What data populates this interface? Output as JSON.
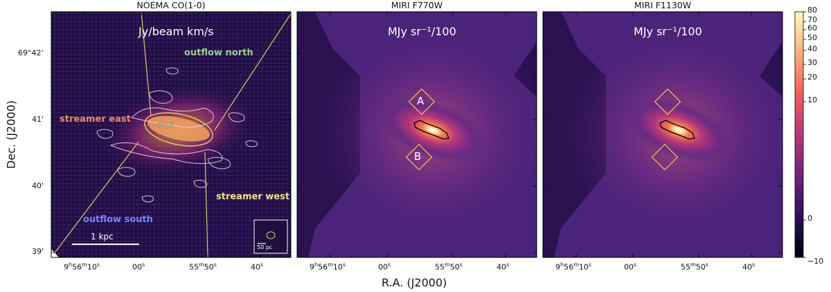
{
  "panels": [
    {
      "title": "NOEMA CO(1-0)",
      "unit": "Jy/beam km/s"
    },
    {
      "title": "MIRI F770W",
      "unit": "MJy sr⁻¹/100"
    },
    {
      "title": "MIRI F1130W",
      "unit": "MJy sr⁻¹/100"
    }
  ],
  "annotations": {
    "outflow_north": "outflow north",
    "streamer_east": "streamer east",
    "disk": "disk",
    "streamer_west": "streamer west",
    "outflow_south": "outflow south",
    "scalebar": "1 kpc",
    "inset_scalebar": "50 pc",
    "region_a": "A",
    "region_b": "B"
  },
  "axes": {
    "xlabel": "R.A. (J2000)",
    "ylabel": "Dec. (J2000)",
    "yticks": [
      "69°42'",
      "41'",
      "40'",
      "39'"
    ],
    "xticks": [
      {
        "main": "9h56m10s",
        "parts": [
          "9",
          "h",
          "56",
          "m",
          "10",
          "s"
        ]
      },
      {
        "main": "00s",
        "parts": [
          "00",
          "s"
        ]
      },
      {
        "main": "55m50s",
        "parts": [
          "55",
          "m",
          "50",
          "s"
        ]
      },
      {
        "main": "40s",
        "parts": [
          "40",
          "s"
        ]
      }
    ]
  },
  "colorbar": {
    "ticks": [
      "80",
      "70",
      "60",
      "50",
      "40",
      "30",
      "20",
      "10",
      "0",
      "−10"
    ],
    "colors": [
      "#000004",
      "#2c115f",
      "#721f81",
      "#b73779",
      "#f1605d",
      "#feb078",
      "#fcfdbf"
    ]
  },
  "colors": {
    "outflow_north": "#9bd18a",
    "streamer_east": "#f08a6e",
    "disk": "#9a9a8a",
    "streamer_west": "#f3e08a",
    "outflow_south": "#7f82ff",
    "guide_lines": "#e8c86a",
    "region_boxes": "#f3c64a"
  }
}
